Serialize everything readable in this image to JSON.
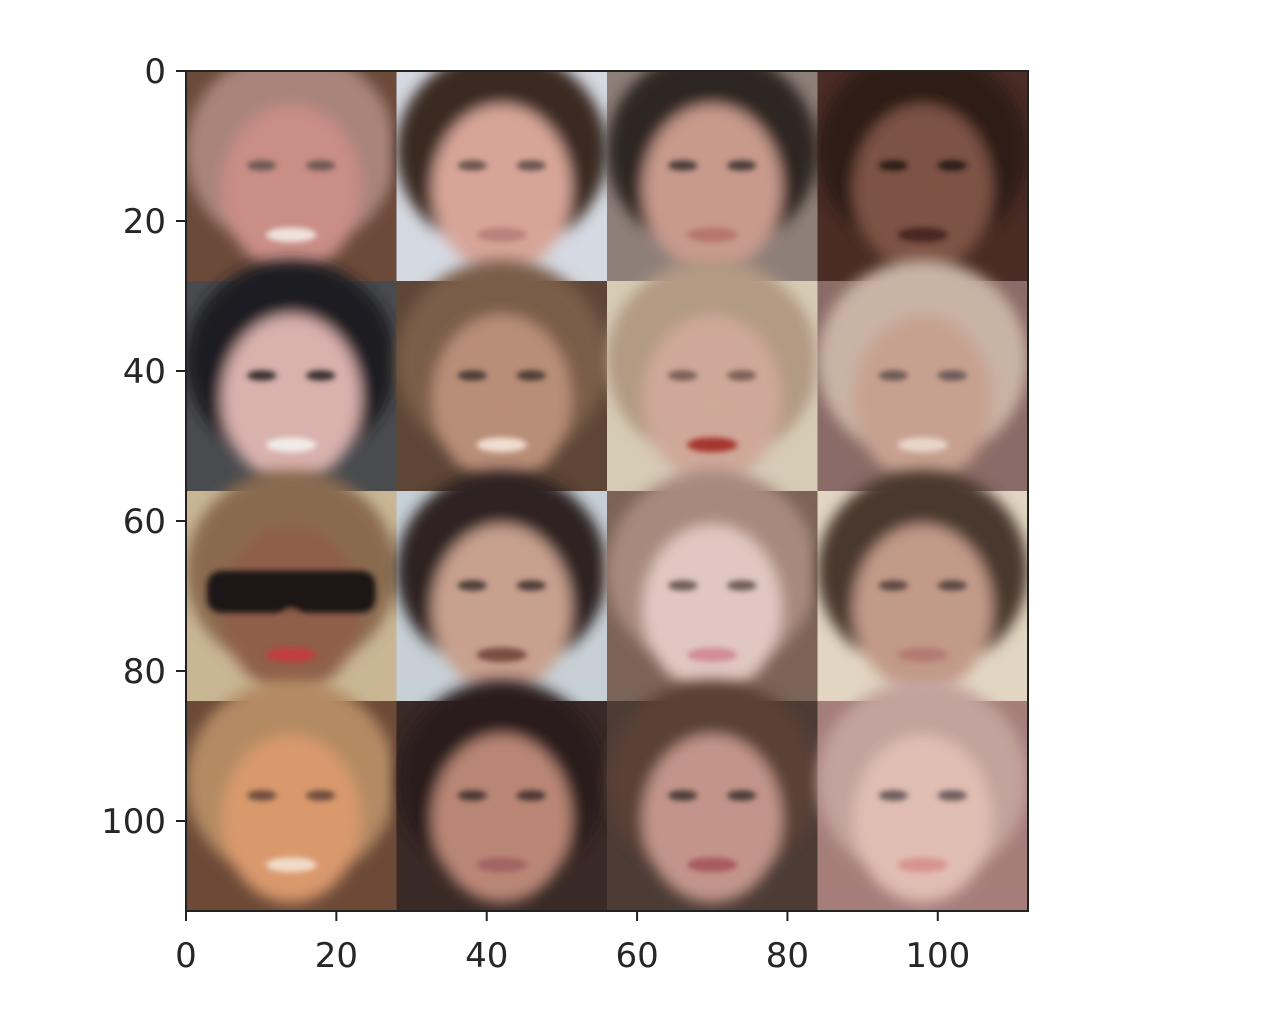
{
  "chart_data": {
    "type": "image",
    "description_grid": {
      "rows": 4,
      "cols": 4
    },
    "xlim": [
      0,
      112
    ],
    "ylim": [
      112,
      0
    ],
    "x_ticks": [
      0,
      20,
      40,
      60,
      80,
      100
    ],
    "y_ticks": [
      0,
      20,
      40,
      60,
      80,
      100
    ],
    "x_tick_labels": [
      "0",
      "20",
      "40",
      "60",
      "80",
      "100"
    ],
    "y_tick_labels": [
      "0",
      "20",
      "40",
      "60",
      "80",
      "100"
    ],
    "tiles": [
      {
        "row": 0,
        "col": 0,
        "bg": "#6b4a3a",
        "hair": "#a9847a",
        "skin": "#c98e86",
        "eyes": "#6e5a55",
        "mouth": "#efe3dc",
        "glasses": false
      },
      {
        "row": 0,
        "col": 1,
        "bg": "#d5d9e2",
        "hair": "#3b2a24",
        "skin": "#d7a598",
        "eyes": "#6a5450",
        "mouth": "#b9827d",
        "glasses": false
      },
      {
        "row": 0,
        "col": 2,
        "bg": "#8e7f79",
        "hair": "#2e2522",
        "skin": "#c79a8c",
        "eyes": "#4d3e3b",
        "mouth": "#b67670",
        "glasses": false
      },
      {
        "row": 0,
        "col": 3,
        "bg": "#4a2c25",
        "hair": "#2d1a16",
        "skin": "#7d5245",
        "eyes": "#2a1c19",
        "mouth": "#4a2520",
        "glasses": false
      },
      {
        "row": 1,
        "col": 0,
        "bg": "#4a4b4e",
        "hair": "#1d1f24",
        "skin": "#d9b1ad",
        "eyes": "#3a302e",
        "mouth": "#f1ece7",
        "glasses": false
      },
      {
        "row": 1,
        "col": 1,
        "bg": "#5e4636",
        "hair": "#7a5d4a",
        "skin": "#b98e78",
        "eyes": "#4e3d35",
        "mouth": "#f2ddd0",
        "glasses": false
      },
      {
        "row": 1,
        "col": 2,
        "bg": "#d6cbb5",
        "hair": "#b39a83",
        "skin": "#cfa899",
        "eyes": "#7b5e57",
        "mouth": "#a6362f",
        "glasses": false
      },
      {
        "row": 1,
        "col": 3,
        "bg": "#8b6b67",
        "hair": "#c9b3a5",
        "skin": "#c7a190",
        "eyes": "#6d5a55",
        "mouth": "#e8d5cb",
        "glasses": false
      },
      {
        "row": 2,
        "col": 0,
        "bg": "#c9b693",
        "hair": "#8a6a4f",
        "skin": "#8f5f48",
        "eyes": "#1b1919",
        "mouth": "#c23c3c",
        "glasses": true
      },
      {
        "row": 2,
        "col": 1,
        "bg": "#c7d0d6",
        "hair": "#2f2420",
        "skin": "#c8a08e",
        "eyes": "#4d3c37",
        "mouth": "#7b4e43",
        "glasses": false
      },
      {
        "row": 2,
        "col": 2,
        "bg": "#7c6358",
        "hair": "#a8897d",
        "skin": "#e1c7c1",
        "eyes": "#6f5c57",
        "mouth": "#d28d97",
        "glasses": false
      },
      {
        "row": 2,
        "col": 3,
        "bg": "#e2d6c3",
        "hair": "#4a382e",
        "skin": "#c29a88",
        "eyes": "#5d4a44",
        "mouth": "#b37b72",
        "glasses": false
      },
      {
        "row": 3,
        "col": 0,
        "bg": "#6c4a37",
        "hair": "#b38a63",
        "skin": "#d9996d",
        "eyes": "#6e4d3e",
        "mouth": "#f1dcc9",
        "glasses": false
      },
      {
        "row": 3,
        "col": 1,
        "bg": "#3a2a26",
        "hair": "#2a1f1c",
        "skin": "#b98676",
        "eyes": "#4b3833",
        "mouth": "#a26463",
        "glasses": false
      },
      {
        "row": 3,
        "col": 2,
        "bg": "#4d3c36",
        "hair": "#5a3f35",
        "skin": "#c3958a",
        "eyes": "#4c3c38",
        "mouth": "#a85a5e",
        "glasses": false
      },
      {
        "row": 3,
        "col": 3,
        "bg": "#a57e7a",
        "hair": "#c3a39d",
        "skin": "#e0bdb3",
        "eyes": "#6d5c5b",
        "mouth": "#d7948e",
        "glasses": false
      }
    ]
  }
}
